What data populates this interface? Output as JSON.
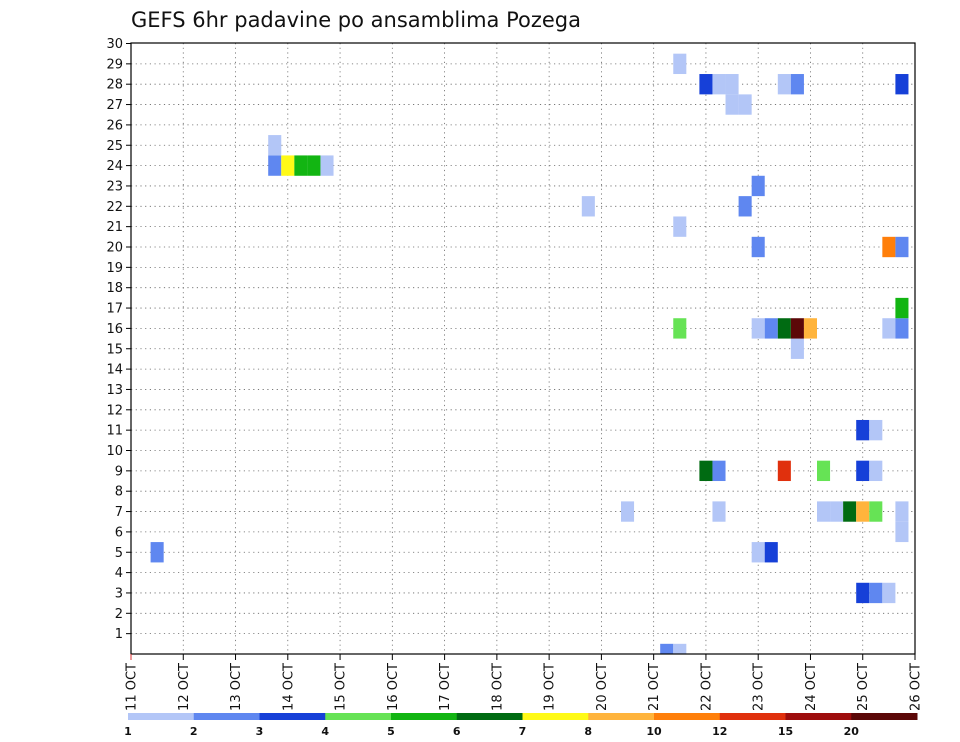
{
  "chart_data": {
    "type": "heatmap",
    "title": "GEFS 6hr padavine po ansamblima Pozega",
    "xlabel": "",
    "ylabel": "",
    "x_tick_labels": [
      "11 OCT",
      "12 OCT",
      "13 OCT",
      "14 OCT",
      "15 OCT",
      "16 OCT",
      "17 OCT",
      "18 OCT",
      "19 OCT",
      "20 OCT",
      "21 OCT",
      "22 OCT",
      "23 OCT",
      "24 OCT",
      "25 OCT",
      "26 OCT"
    ],
    "x_range_days": [
      0,
      15
    ],
    "y_tick_labels": [
      "1",
      "2",
      "3",
      "4",
      "5",
      "6",
      "7",
      "8",
      "9",
      "10",
      "11",
      "12",
      "13",
      "14",
      "15",
      "16",
      "17",
      "18",
      "19",
      "20",
      "21",
      "22",
      "23",
      "24",
      "25",
      "26",
      "27",
      "28",
      "29",
      "30"
    ],
    "y_range": [
      0,
      30
    ],
    "grid": "dotted",
    "legend_placement": "bottom",
    "color_scale": [
      {
        "from": "1",
        "color": "#b3c6f7"
      },
      {
        "from": "2",
        "color": "#5f87f0"
      },
      {
        "from": "3",
        "color": "#1640d8"
      },
      {
        "from": "4",
        "color": "#66e355"
      },
      {
        "from": "5",
        "color": "#12b512"
      },
      {
        "from": "6",
        "color": "#006b12"
      },
      {
        "from": "7",
        "color": "#fffa17"
      },
      {
        "from": "8",
        "color": "#ffb43c"
      },
      {
        "from": "10",
        "color": "#ff7f0a"
      },
      {
        "from": "12",
        "color": "#e0300d"
      },
      {
        "from": "15",
        "color": "#9e0d0d"
      },
      {
        "from": "20",
        "color": "#5c0808"
      }
    ],
    "legend_labels": [
      "1",
      "2",
      "3",
      "4",
      "5",
      "6",
      "7",
      "8",
      "10",
      "12",
      "15",
      "20"
    ],
    "cells_note_units": "x = days after 11 OCT 00Z, 6-hour steps; y = ensemble member",
    "cells": [
      {
        "x": 10.25,
        "member": 0,
        "value": 2
      },
      {
        "x": 10.5,
        "member": 0,
        "value": 1
      },
      {
        "x": 0.5,
        "member": 5,
        "value": 2
      },
      {
        "x": 14.0,
        "member": 3,
        "value": 3
      },
      {
        "x": 14.25,
        "member": 3,
        "value": 2
      },
      {
        "x": 14.5,
        "member": 3,
        "value": 1
      },
      {
        "x": 12.0,
        "member": 5,
        "value": 1
      },
      {
        "x": 12.25,
        "member": 5,
        "value": 3
      },
      {
        "x": 14.75,
        "member": 6,
        "value": 1
      },
      {
        "x": 9.5,
        "member": 7,
        "value": 1
      },
      {
        "x": 11.25,
        "member": 7,
        "value": 1
      },
      {
        "x": 13.25,
        "member": 7,
        "value": 1
      },
      {
        "x": 13.5,
        "member": 7,
        "value": 1
      },
      {
        "x": 13.75,
        "member": 7,
        "value": 6
      },
      {
        "x": 14.0,
        "member": 7,
        "value": 8
      },
      {
        "x": 14.25,
        "member": 7,
        "value": 4
      },
      {
        "x": 14.75,
        "member": 7,
        "value": 1
      },
      {
        "x": 11.0,
        "member": 9,
        "value": 6
      },
      {
        "x": 11.25,
        "member": 9,
        "value": 2
      },
      {
        "x": 12.5,
        "member": 9,
        "value": 12
      },
      {
        "x": 13.25,
        "member": 9,
        "value": 4
      },
      {
        "x": 14.0,
        "member": 9,
        "value": 3
      },
      {
        "x": 14.25,
        "member": 9,
        "value": 1
      },
      {
        "x": 14.0,
        "member": 11,
        "value": 3
      },
      {
        "x": 14.25,
        "member": 11,
        "value": 1
      },
      {
        "x": 12.75,
        "member": 15,
        "value": 1
      },
      {
        "x": 10.5,
        "member": 16,
        "value": 4
      },
      {
        "x": 12.0,
        "member": 16,
        "value": 1
      },
      {
        "x": 12.25,
        "member": 16,
        "value": 2
      },
      {
        "x": 12.5,
        "member": 16,
        "value": 6
      },
      {
        "x": 12.75,
        "member": 16,
        "value": 20
      },
      {
        "x": 13.0,
        "member": 16,
        "value": 8
      },
      {
        "x": 14.5,
        "member": 16,
        "value": 1
      },
      {
        "x": 14.75,
        "member": 16,
        "value": 2
      },
      {
        "x": 14.75,
        "member": 17,
        "value": 5
      },
      {
        "x": 14.5,
        "member": 20,
        "value": 10
      },
      {
        "x": 14.75,
        "member": 20,
        "value": 2
      },
      {
        "x": 12.0,
        "member": 20,
        "value": 2
      },
      {
        "x": 10.5,
        "member": 21,
        "value": 1
      },
      {
        "x": 8.75,
        "member": 22,
        "value": 1
      },
      {
        "x": 11.75,
        "member": 22,
        "value": 2
      },
      {
        "x": 12.0,
        "member": 23,
        "value": 2
      },
      {
        "x": 2.75,
        "member": 24,
        "value": 2
      },
      {
        "x": 3.0,
        "member": 24,
        "value": 7
      },
      {
        "x": 3.25,
        "member": 24,
        "value": 5
      },
      {
        "x": 3.5,
        "member": 24,
        "value": 5
      },
      {
        "x": 3.75,
        "member": 24,
        "value": 1
      },
      {
        "x": 2.75,
        "member": 25,
        "value": 1
      },
      {
        "x": 11.5,
        "member": 27,
        "value": 1
      },
      {
        "x": 11.75,
        "member": 27,
        "value": 1
      },
      {
        "x": 11.0,
        "member": 28,
        "value": 3
      },
      {
        "x": 11.25,
        "member": 28,
        "value": 1
      },
      {
        "x": 11.5,
        "member": 28,
        "value": 1
      },
      {
        "x": 12.5,
        "member": 28,
        "value": 1
      },
      {
        "x": 12.75,
        "member": 28,
        "value": 2
      },
      {
        "x": 14.75,
        "member": 28,
        "value": 3
      },
      {
        "x": 10.5,
        "member": 29,
        "value": 1
      }
    ]
  }
}
